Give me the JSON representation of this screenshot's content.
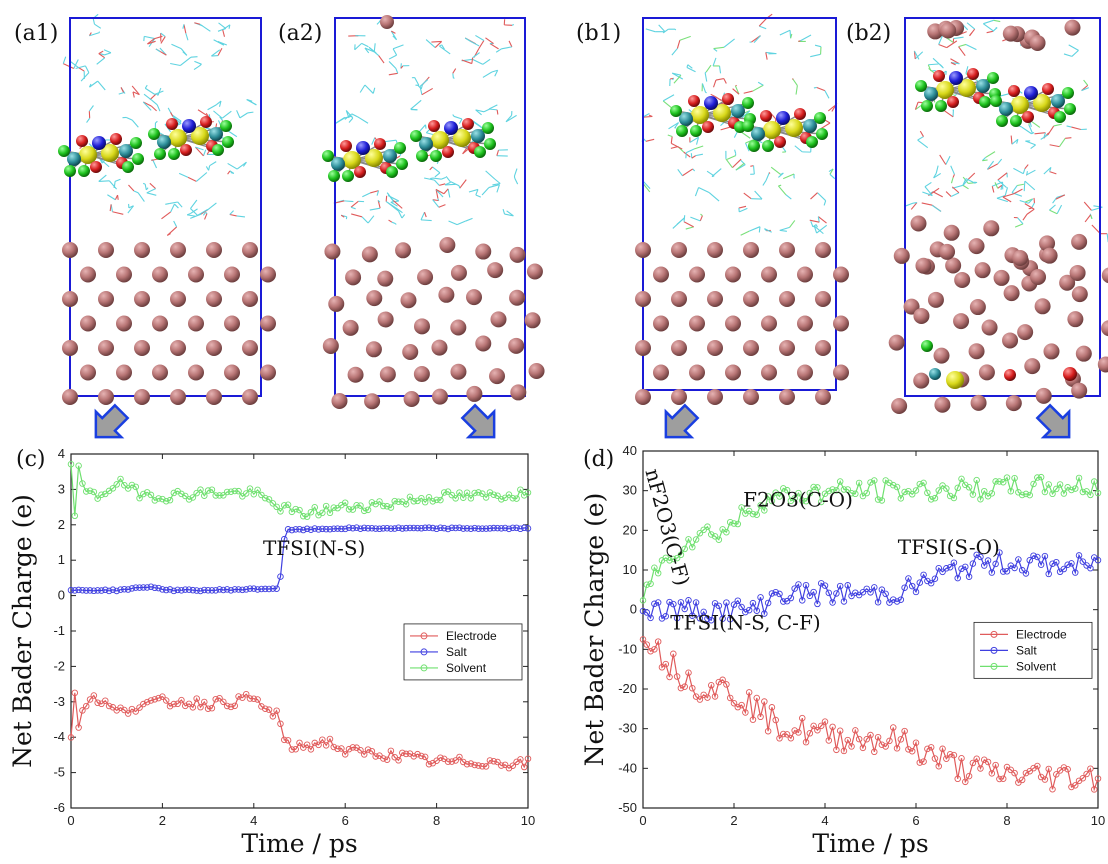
{
  "panel_labels": {
    "a1": "(a1)",
    "a2": "(a2)",
    "b1": "(b1)",
    "b2": "(b2)",
    "c": "(c)",
    "d": "(d)"
  },
  "colors": {
    "electrode": "#e05b5b",
    "salt": "#3f3fe0",
    "solvent": "#6fe06f",
    "frame": "#1a1ad6",
    "atom_li": "#b77a7a",
    "arrow_fill": "#9e9e9e",
    "arrow_stroke": "#1a3fe0",
    "sulfur": "#d6d61e",
    "fluorine": "#1ec21e",
    "oxygen": "#d61e1e",
    "nitrogen": "#1e1ed6",
    "carbon": "#2e8f9a"
  },
  "chart_data": [
    {
      "id": "c",
      "type": "line",
      "xlabel": "Time / ps",
      "ylabel": "Net Bader Charge (e)",
      "xlim": [
        0,
        10
      ],
      "ylim": [
        -6,
        4
      ],
      "xticks": [
        0,
        2,
        4,
        6,
        8,
        10
      ],
      "yticks": [
        -6,
        -5,
        -4,
        -3,
        -2,
        -1,
        0,
        1,
        2,
        3,
        4
      ],
      "legend_position": "center-right",
      "annotations": [
        {
          "text": "TFSI(N-S)",
          "x": 4.2,
          "y": 1.15
        }
      ],
      "series": [
        {
          "name": "Electrode",
          "color": "#e05b5b",
          "keypoints": [
            [
              0,
              -4
            ],
            [
              0.05,
              -2.0
            ],
            [
              0.15,
              -3.8
            ],
            [
              0.3,
              -3.0
            ],
            [
              0.6,
              -2.9
            ],
            [
              1.0,
              -3.3
            ],
            [
              1.5,
              -3.1
            ],
            [
              2.0,
              -3.0
            ],
            [
              2.5,
              -3.0
            ],
            [
              3.0,
              -3.05
            ],
            [
              3.5,
              -3.0
            ],
            [
              4.0,
              -2.9
            ],
            [
              4.3,
              -3.3
            ],
            [
              4.55,
              -3.3
            ],
            [
              4.65,
              -4.2
            ],
            [
              5.0,
              -4.3
            ],
            [
              5.6,
              -4.1
            ],
            [
              6.0,
              -4.4
            ],
            [
              7.0,
              -4.5
            ],
            [
              8.0,
              -4.7
            ],
            [
              9.0,
              -4.7
            ],
            [
              10.0,
              -4.75
            ]
          ],
          "noise": 0.15
        },
        {
          "name": "Salt",
          "color": "#3f3fe0",
          "keypoints": [
            [
              0,
              0.15
            ],
            [
              1.0,
              0.15
            ],
            [
              1.7,
              0.25
            ],
            [
              2.2,
              0.15
            ],
            [
              3.0,
              0.15
            ],
            [
              4.5,
              0.2
            ],
            [
              4.62,
              0.7
            ],
            [
              4.68,
              1.85
            ],
            [
              6.0,
              1.9
            ],
            [
              8.0,
              1.9
            ],
            [
              10.0,
              1.9
            ]
          ],
          "noise": 0.02
        },
        {
          "name": "Solvent",
          "color": "#6fe06f",
          "keypoints": [
            [
              0,
              3.8
            ],
            [
              0.05,
              1.8
            ],
            [
              0.15,
              3.6
            ],
            [
              0.3,
              2.9
            ],
            [
              0.6,
              2.8
            ],
            [
              1.0,
              3.2
            ],
            [
              1.5,
              2.9
            ],
            [
              2.0,
              2.8
            ],
            [
              3.0,
              2.9
            ],
            [
              4.0,
              2.9
            ],
            [
              4.4,
              2.6
            ],
            [
              5.0,
              2.3
            ],
            [
              5.5,
              2.4
            ],
            [
              6.0,
              2.5
            ],
            [
              7.0,
              2.6
            ],
            [
              8.0,
              2.8
            ],
            [
              9.0,
              2.8
            ],
            [
              10.0,
              2.9
            ]
          ],
          "noise": 0.15
        }
      ]
    },
    {
      "id": "d",
      "type": "line",
      "xlabel": "Time / ps",
      "ylabel": "Net Bader Charge (e)",
      "xlim": [
        0,
        10
      ],
      "ylim": [
        -50,
        40
      ],
      "xticks": [
        0,
        2,
        4,
        6,
        8,
        10
      ],
      "yticks": [
        -50,
        -40,
        -30,
        -20,
        -10,
        0,
        10,
        20,
        30,
        40
      ],
      "legend_position": "center-right",
      "annotations": [
        {
          "text": "TFSI(N-S, C-F)",
          "x": 0.6,
          "y": -5
        },
        {
          "text": "TFSI(S-O)",
          "x": 5.6,
          "y": 14
        },
        {
          "text": "F2O3(C-O)",
          "x": 2.2,
          "y": 26
        },
        {
          "text": "nF2O3(C-F)",
          "x": 0.05,
          "y": 35,
          "rotate": 75
        }
      ],
      "series": [
        {
          "name": "Electrode",
          "color": "#e05b5b",
          "keypoints": [
            [
              0,
              -4
            ],
            [
              0.3,
              -10
            ],
            [
              0.8,
              -16
            ],
            [
              1.2,
              -19
            ],
            [
              1.8,
              -20
            ],
            [
              2.3,
              -23
            ],
            [
              2.8,
              -28
            ],
            [
              3.2,
              -30
            ],
            [
              3.8,
              -31
            ],
            [
              4.2,
              -32
            ],
            [
              5.0,
              -32.5
            ],
            [
              5.6,
              -33
            ],
            [
              6.2,
              -36
            ],
            [
              7.0,
              -40
            ],
            [
              7.6,
              -41
            ],
            [
              8.5,
              -42
            ],
            [
              9.3,
              -42
            ],
            [
              10.0,
              -42
            ]
          ],
          "noise": 0.4
        },
        {
          "name": "Salt",
          "color": "#3f3fe0",
          "keypoints": [
            [
              0,
              0
            ],
            [
              2.5,
              0
            ],
            [
              2.8,
              3
            ],
            [
              3.0,
              4
            ],
            [
              5.5,
              4
            ],
            [
              6.0,
              6
            ],
            [
              6.6,
              9
            ],
            [
              7.2,
              11
            ],
            [
              8.0,
              12
            ],
            [
              9.0,
              11
            ],
            [
              10.0,
              11
            ]
          ],
          "noise": 0.3
        },
        {
          "name": "Solvent",
          "color": "#6fe06f",
          "keypoints": [
            [
              0,
              4
            ],
            [
              0.3,
              10
            ],
            [
              0.7,
              15
            ],
            [
              1.2,
              19
            ],
            [
              1.8,
              20
            ],
            [
              2.2,
              24
            ],
            [
              2.7,
              28
            ],
            [
              3.4,
              29
            ],
            [
              4.5,
              30
            ],
            [
              6.0,
              30
            ],
            [
              7.5,
              30.5
            ],
            [
              9.0,
              31
            ],
            [
              10.0,
              31
            ]
          ],
          "noise": 0.3
        }
      ]
    }
  ]
}
